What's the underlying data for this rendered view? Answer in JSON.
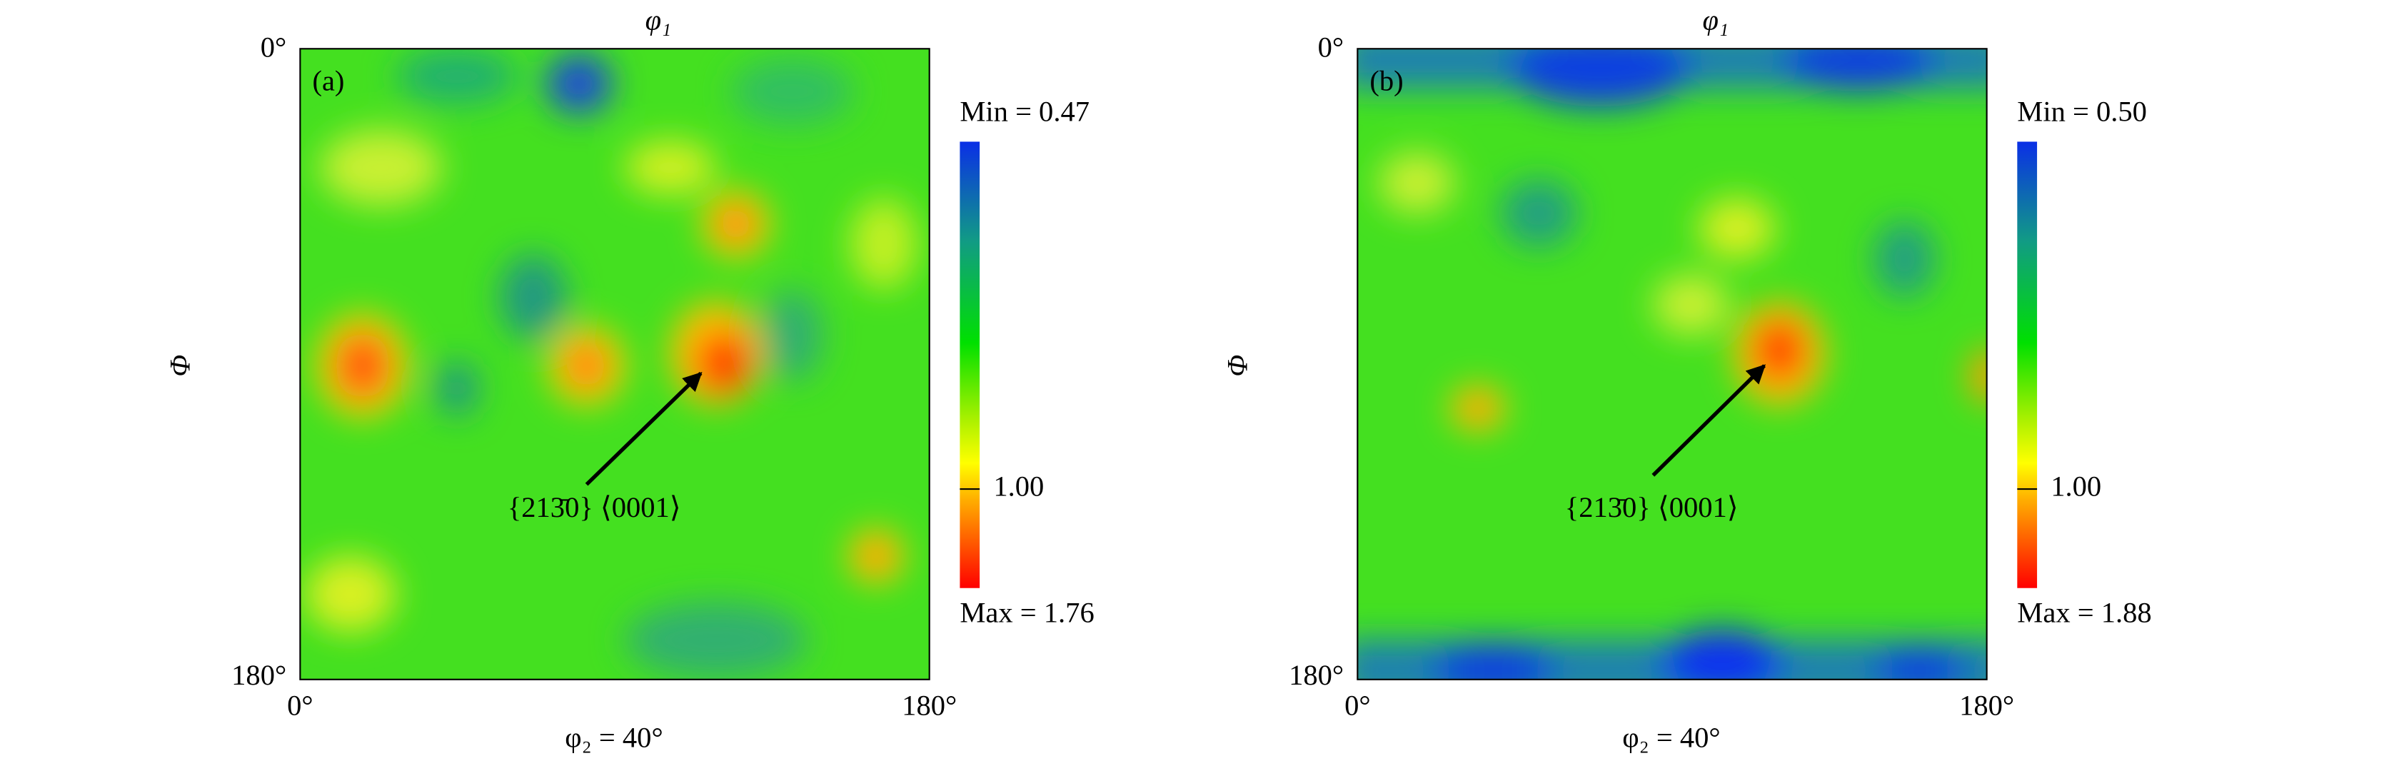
{
  "panels": [
    {
      "label": "(a)",
      "top_label": "φ₁",
      "left_label": "Φ",
      "y_top": "0°",
      "y_bottom": "180°",
      "x_left": "0°",
      "x_right": "180°",
      "x_label": "φ₂ = 40°",
      "min_label": "Min = 0.47",
      "mid_label": "1.00",
      "max_label": "Max = 1.76",
      "annotation": "{213̄0} ⟨0001⟩"
    },
    {
      "label": "(b)",
      "top_label": "φ₁",
      "left_label": "Φ",
      "y_top": "0°",
      "y_bottom": "180°",
      "x_left": "0°",
      "x_right": "180°",
      "x_label": "φ₂ = 40°",
      "min_label": "Min = 0.50",
      "mid_label": "1.00",
      "max_label": "Max = 1.88",
      "annotation": "{213̄0} ⟨0001⟩"
    }
  ]
}
